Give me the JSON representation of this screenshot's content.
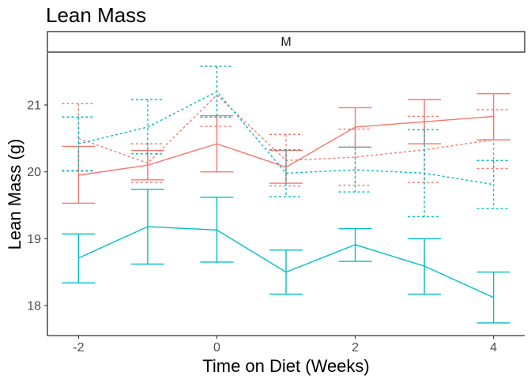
{
  "chart_data": {
    "type": "line",
    "title": "Lean Mass",
    "facet": "M",
    "xlabel": "Time on Diet (Weeks)",
    "ylabel": "Lean Mass (g)",
    "xlim": [
      -2.45,
      4.45
    ],
    "ylim": [
      17.55,
      21.78
    ],
    "x_ticks": [
      -2,
      0,
      2,
      4
    ],
    "y_ticks": [
      18,
      19,
      20,
      21
    ],
    "grid": false,
    "legend": "none",
    "series": [
      {
        "name": "red-solid",
        "color": "#F8766D",
        "dash": "solid",
        "x": [
          -2,
          -1,
          0,
          1,
          2,
          3,
          4
        ],
        "values": [
          19.95,
          20.1,
          20.42,
          20.07,
          20.67,
          20.75,
          20.83
        ],
        "lower": [
          19.53,
          19.88,
          20.0,
          19.83,
          20.37,
          20.42,
          20.48
        ],
        "upper": [
          20.38,
          20.32,
          20.84,
          20.32,
          20.96,
          21.08,
          21.17
        ]
      },
      {
        "name": "red-dashed",
        "color": "#F8766D",
        "dash": "dashed",
        "x": [
          -2,
          -1,
          0,
          1,
          2,
          3,
          4
        ],
        "values": [
          20.5,
          20.13,
          21.15,
          20.17,
          20.22,
          20.33,
          20.48
        ],
        "lower": [
          20.01,
          19.84,
          20.68,
          19.79,
          19.8,
          19.84,
          20.05
        ],
        "upper": [
          21.02,
          20.42,
          21.58,
          20.56,
          20.64,
          20.83,
          20.93
        ]
      },
      {
        "name": "teal-dashed",
        "color": "#00BFC4",
        "dash": "dashed",
        "x": [
          -2,
          -1,
          0,
          1,
          2,
          3,
          4
        ],
        "values": [
          20.42,
          20.67,
          21.2,
          19.98,
          20.03,
          19.98,
          19.81
        ],
        "lower": [
          20.02,
          20.27,
          20.82,
          19.63,
          19.7,
          19.33,
          19.45
        ],
        "upper": [
          20.82,
          21.08,
          21.58,
          20.33,
          20.37,
          20.63,
          20.17
        ]
      },
      {
        "name": "teal-solid",
        "color": "#00BFC4",
        "dash": "solid",
        "x": [
          -2,
          -1,
          0,
          1,
          2,
          3,
          4
        ],
        "values": [
          18.71,
          19.18,
          19.13,
          18.5,
          18.91,
          18.59,
          18.12
        ],
        "lower": [
          18.34,
          18.62,
          18.65,
          18.17,
          18.66,
          18.17,
          17.74
        ],
        "upper": [
          19.07,
          19.74,
          19.62,
          18.83,
          19.15,
          19.0,
          18.5
        ]
      }
    ]
  }
}
